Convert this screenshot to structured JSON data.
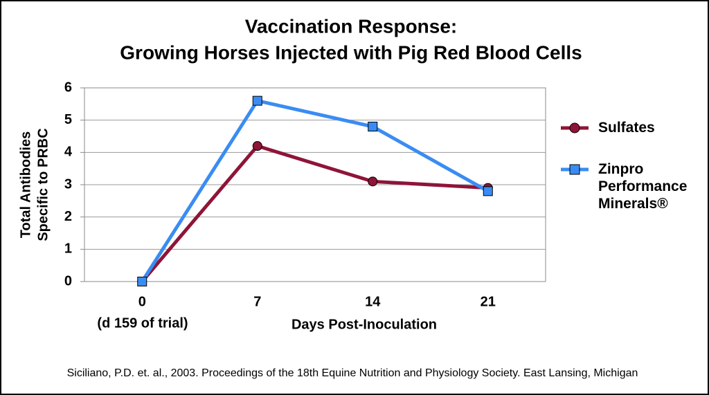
{
  "chart_data": {
    "type": "line",
    "title": [
      "Vaccination Response:",
      "Growing Horses Injected with Pig Red Blood Cells"
    ],
    "ylabel": [
      "Total Antibodies",
      "Specific to PRBC"
    ],
    "xlabel": "Days Post-Inoculation",
    "x_annotation": "(d 159 of trial)",
    "categories": [
      "0",
      "7",
      "14",
      "21"
    ],
    "series": [
      {
        "name": "Sulfates",
        "color": "#8e1538",
        "marker": "circle",
        "values": [
          0,
          4.2,
          3.1,
          2.9
        ]
      },
      {
        "name": "Zinpro Performance Minerals®",
        "color": "#3a8cf2",
        "marker": "square",
        "values": [
          0,
          5.6,
          4.8,
          2.8
        ]
      }
    ],
    "ylim": [
      0,
      6
    ],
    "yticks": [
      0,
      1,
      2,
      3,
      4,
      5,
      6
    ],
    "grid": true,
    "source": "Siciliano, P.D. et. al., 2003.  Proceedings of the 18th Equine Nutrition and Physiology Society. East Lansing, Michigan"
  }
}
